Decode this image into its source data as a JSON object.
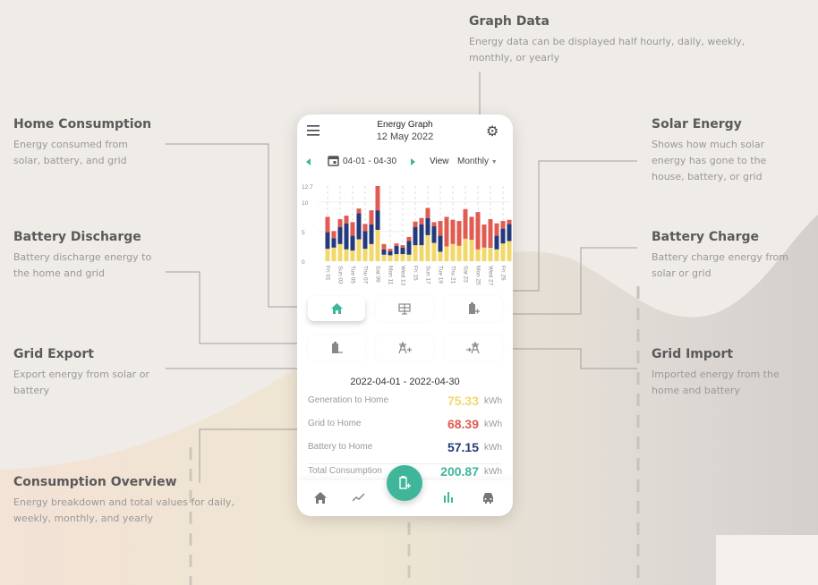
{
  "colors": {
    "solar": "#f2d86b",
    "battery": "#243a7a",
    "grid": "#e05b52",
    "accent": "#3fb59a"
  },
  "annotations": {
    "graph_data": {
      "title": "Graph Data",
      "desc": "Energy data can be displayed half hourly, daily, weekly, monthly, or yearly"
    },
    "home_consumption": {
      "title": "Home Consumption",
      "desc": "Energy consumed from solar, battery, and grid"
    },
    "battery_discharge": {
      "title": "Battery Discharge",
      "desc": "Battery discharge energy to the home and grid"
    },
    "grid_export": {
      "title": "Grid Export",
      "desc": "Export energy from solar or battery"
    },
    "consumption_overview": {
      "title": "Consumption Overview",
      "desc": "Energy breakdown and total values for daily, weekly, monthly, and yearly"
    },
    "solar_energy": {
      "title": "Solar Energy",
      "desc": "Shows how much solar energy has gone to the house, battery, or grid"
    },
    "battery_charge": {
      "title": "Battery Charge",
      "desc": "Battery charge energy from solar or grid"
    },
    "grid_import": {
      "title": "Grid Import",
      "desc": "Imported energy from the home and battery"
    }
  },
  "app": {
    "title": "Energy Graph",
    "date": "12 May 2022",
    "range": "04-01 - 04-30",
    "view_label": "View",
    "view_value": "Monthly",
    "period": "2022-04-01 - 2022-04-30",
    "rows": [
      {
        "label": "Generation to Home",
        "value": "75.33",
        "unit": "kWh",
        "color": "#f2d86b"
      },
      {
        "label": "Grid to Home",
        "value": "68.39",
        "unit": "kWh",
        "color": "#e05b52"
      },
      {
        "label": "Battery to Home",
        "value": "57.15",
        "unit": "kWh",
        "color": "#243a7a"
      },
      {
        "label": "Total Consumption",
        "value": "200.87",
        "unit": "kWh",
        "color": "#3fb59a"
      }
    ],
    "tiles": [
      "home-icon",
      "solar-panel-icon",
      "battery-charge-icon",
      "battery-discharge-icon",
      "grid-export-icon",
      "grid-import-icon"
    ],
    "nav": [
      "home-icon",
      "trend-icon",
      "charge-icon",
      "bar-chart-icon",
      "car-icon"
    ]
  },
  "chart_data": {
    "type": "bar",
    "stacked": true,
    "ylim": [
      0,
      12.7
    ],
    "yticks": [
      "0",
      "5",
      "10",
      "12.7"
    ],
    "xticks": [
      "Fri 01",
      "Sun 03",
      "Tue 05",
      "Thu 07",
      "Sat 09",
      "Mon 11",
      "Wed 13",
      "Fri 15",
      "Sun 17",
      "Tue 19",
      "Thu 21",
      "Sat 23",
      "Mon 25",
      "Wed 27",
      "Fri 29"
    ],
    "series": [
      {
        "color": "#f2d86b",
        "values": [
          2.1,
          2.3,
          2.9,
          2.0,
          1.8,
          3.7,
          2.1,
          2.9,
          5.3,
          1.1,
          1.0,
          1.2,
          1.2,
          1.1,
          2.7,
          2.7,
          4.4,
          3.1,
          1.6,
          2.5,
          2.9,
          2.6,
          3.8,
          3.6,
          2.0,
          2.3,
          2.3,
          2.0,
          3.0,
          3.4
        ]
      },
      {
        "color": "#243a7a",
        "values": [
          2.8,
          1.6,
          2.9,
          4.4,
          2.5,
          4.4,
          3.0,
          3.3,
          3.3,
          0.9,
          0.7,
          1.4,
          1.1,
          2.3,
          3.1,
          3.5,
          2.9,
          2.8,
          2.7,
          0,
          0,
          0,
          0,
          0,
          0,
          0,
          0.1,
          2.3,
          2.5,
          2.9
        ]
      },
      {
        "color": "#e05b52",
        "values": [
          2.6,
          1.2,
          1.3,
          1.3,
          2.3,
          0.8,
          1.2,
          2.4,
          4.1,
          0.9,
          0.4,
          0.4,
          0.4,
          0.7,
          0.9,
          1.1,
          1.7,
          0.7,
          2.5,
          5.0,
          4.1,
          4.2,
          5.0,
          3.9,
          6.3,
          3.9,
          4.7,
          2.1,
          1.3,
          0.7
        ]
      }
    ]
  }
}
